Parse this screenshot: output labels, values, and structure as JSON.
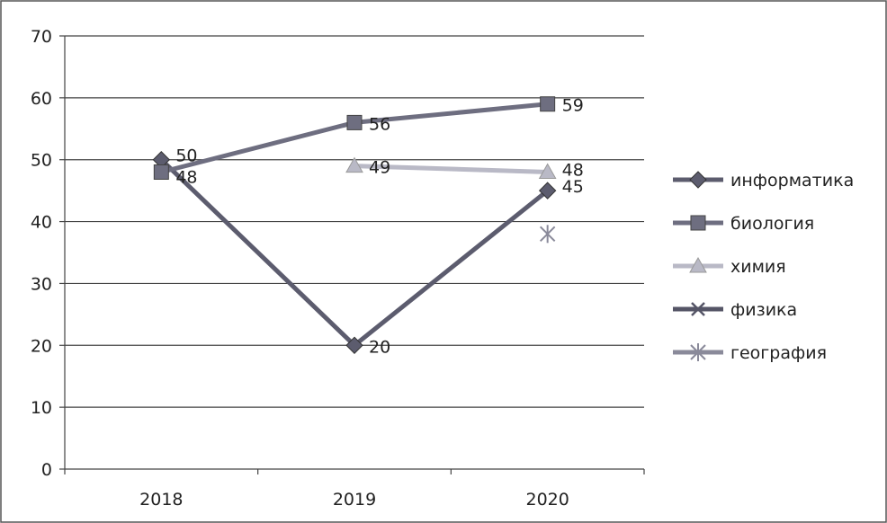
{
  "chart_data": {
    "type": "line",
    "title": "",
    "xlabel": "",
    "ylabel": "",
    "categories": [
      "2018",
      "2019",
      "2020"
    ],
    "ylim": [
      0,
      70
    ],
    "yticks": [
      "0",
      "10",
      "20",
      "30",
      "40",
      "50",
      "60",
      "70"
    ],
    "grid": true,
    "legend_position": "right",
    "series": [
      {
        "name": "информатика",
        "values": [
          50,
          20,
          45
        ],
        "labels": [
          "50",
          "20",
          "45"
        ],
        "color": "#5c5c6e",
        "marker": "diamond"
      },
      {
        "name": "биология",
        "values": [
          48,
          56,
          59
        ],
        "labels": [
          "48",
          "56",
          "59"
        ],
        "color": "#6e6e80",
        "marker": "square"
      },
      {
        "name": "химия",
        "values": [
          null,
          49,
          48
        ],
        "labels": [
          "",
          "49",
          "48"
        ],
        "color": "#b9b9c6",
        "marker": "triangle"
      },
      {
        "name": "физика",
        "values": [
          null,
          null,
          null
        ],
        "labels": [
          "",
          "",
          ""
        ],
        "color": "#555566",
        "marker": "x"
      },
      {
        "name": "география",
        "values": [
          null,
          null,
          38
        ],
        "labels": [
          "",
          "",
          ""
        ],
        "color": "#8a8a9a",
        "marker": "asterisk"
      }
    ]
  }
}
